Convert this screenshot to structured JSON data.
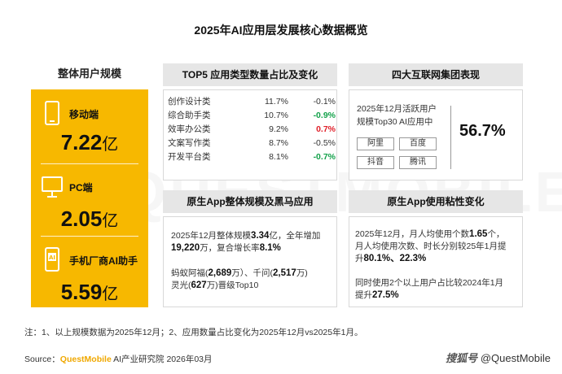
{
  "title": "2025年AI应用层发展核心数据概览",
  "left": {
    "heading": "整体用户规模",
    "metrics": [
      {
        "label": "移动端",
        "value": "7.22",
        "unit": "亿"
      },
      {
        "label": "PC端",
        "value": "2.05",
        "unit": "亿"
      },
      {
        "label": "手机厂商AI助手",
        "value": "5.59",
        "unit": "亿"
      }
    ]
  },
  "top5": {
    "heading": "TOP5 应用类型数量占比及变化",
    "rows": [
      {
        "name": "创作设计类",
        "share": "11.7%",
        "change": "-0.1%",
        "style": "normal"
      },
      {
        "name": "综合助手类",
        "share": "10.7%",
        "change": "-0.9%",
        "style": "pos"
      },
      {
        "name": "效率办公类",
        "share": "9.2%",
        "change": "0.7%",
        "style": "hot"
      },
      {
        "name": "文案写作类",
        "share": "8.7%",
        "change": "-0.5%",
        "style": "normal"
      },
      {
        "name": "开发平台类",
        "share": "8.1%",
        "change": "-0.7%",
        "style": "pos"
      }
    ]
  },
  "internet": {
    "heading": "四大互联网集团表现",
    "line1": "2025年12月活跃用户",
    "line2": "规模Top30 AI应用中",
    "percent": "56.7%",
    "companies": [
      "阿里",
      "百度",
      "抖音",
      "腾讯"
    ]
  },
  "native": {
    "heading": "原生App整体规模及黑马应用",
    "t1": "2025年12月整体规模",
    "v1": "3.34",
    "t2": "亿，全年增加",
    "v2": "19,220",
    "t3": "万，复合增长率",
    "v3": "8.1%",
    "t4": "蚂蚁阿福(",
    "v4": "2,689",
    "t5": "万）、千问(",
    "v5": "2,517",
    "t6": "万)",
    "t7": "灵光(",
    "v7": "627",
    "t8": "万)晋级Top10"
  },
  "sticky": {
    "heading": "原生App使用粘性变化",
    "t1": "2025年12月，月人均使用个数",
    "v1": "1.65",
    "t2": "个，",
    "t3": "月人均使用次数、时长分别较25年1月提",
    "t4": "升",
    "v2": "80.1%、22.3%",
    "t5": "同时使用2个以上用户占比较2024年1月",
    "t6": "提升",
    "v3": "27.5%"
  },
  "note": "注：1、以上规模数据为2025年12月；2、应用数量占比变化为2025年12月vs2025年1月。",
  "source": {
    "prefix": "Source：",
    "brand": "QuestMobile",
    "suffix": " AI产业研究院 2026年03月"
  },
  "credit": {
    "prefix": "搜狐号",
    "suffix": "@QuestMobile"
  },
  "watermark": "QUESTMOBILE",
  "colors": {
    "accent": "#f7b800",
    "positive": "#13a14a",
    "negative": "#e0202a",
    "header_bg": "#e6e6e6"
  }
}
